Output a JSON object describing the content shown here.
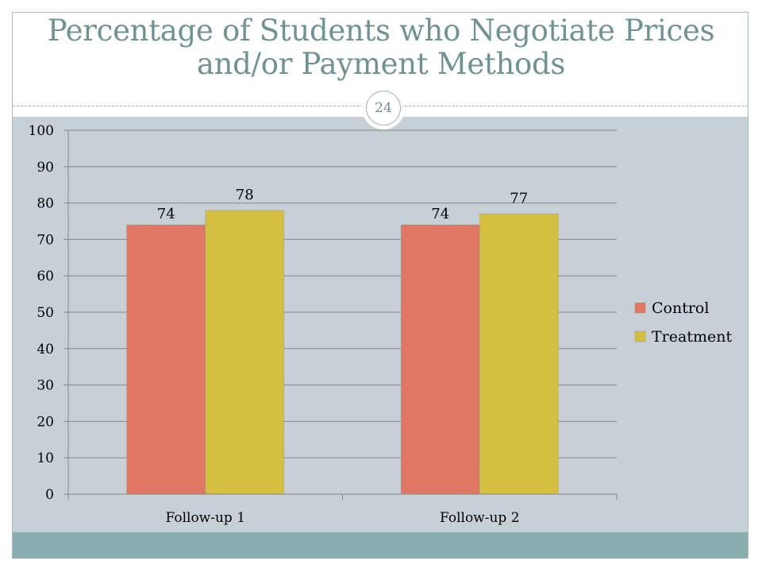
{
  "slide": {
    "title": "Percentage of Students who Negotiate Prices and/or Payment Methods",
    "slide_number": "24"
  },
  "colors": {
    "title": "#6f9393",
    "content_background": "#c6d0d6",
    "bottom_band": "#8aadaf",
    "control": "#e07664",
    "treatment": "#d5bf40",
    "gridline": "#878787"
  },
  "chart_data": {
    "type": "bar",
    "title": "",
    "xlabel": "",
    "ylabel": "",
    "categories": [
      "Follow-up 1",
      "Follow-up 2"
    ],
    "series": [
      {
        "name": "Control",
        "values": [
          74,
          74
        ],
        "color": "#e07664"
      },
      {
        "name": "Treatment",
        "values": [
          78,
          77
        ],
        "color": "#d5bf40"
      }
    ],
    "ylim": [
      0,
      100
    ],
    "yticks": [
      0,
      10,
      20,
      30,
      40,
      50,
      60,
      70,
      80,
      90,
      100
    ],
    "grid": true,
    "data_labels": true,
    "legend_position": "right"
  }
}
